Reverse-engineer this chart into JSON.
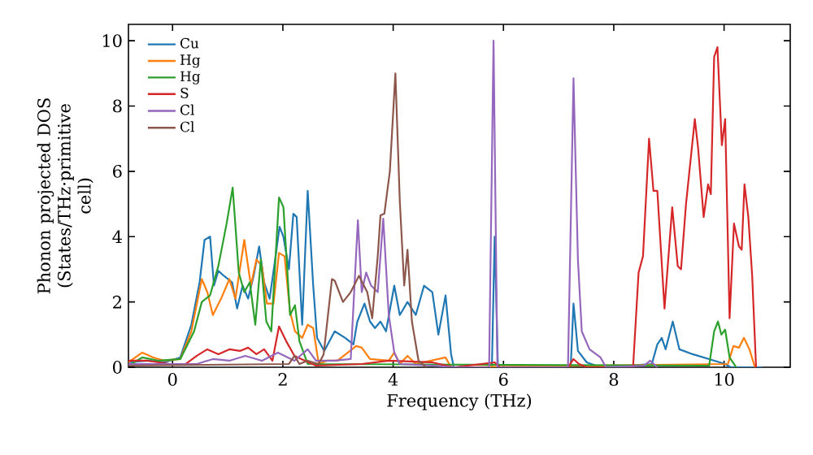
{
  "chart_data": {
    "type": "line",
    "xlabel": "Frequency (THz)",
    "ylabel": "Phonon projected DOS (States/THz·primitive cell)",
    "xlim": [
      -0.8,
      11.2
    ],
    "ylim": [
      0,
      10.5
    ],
    "xticks": [
      0,
      2,
      4,
      6,
      8,
      10
    ],
    "yticks": [
      0,
      2,
      4,
      6,
      8,
      10
    ],
    "legend": "top left",
    "grid": false,
    "marker": "none",
    "line_style": "solid",
    "series": [
      {
        "name": "Cu",
        "color": "#1f77b4",
        "x": [
          -0.8,
          -0.45,
          -0.15,
          0.14,
          0.34,
          0.49,
          0.58,
          0.68,
          0.75,
          0.83,
          0.93,
          1.08,
          1.17,
          1.27,
          1.37,
          1.47,
          1.57,
          1.66,
          1.76,
          1.86,
          1.94,
          2.01,
          2.11,
          2.19,
          2.25,
          2.35,
          2.45,
          2.55,
          2.62,
          2.75,
          2.94,
          3.13,
          3.28,
          3.35,
          3.48,
          3.58,
          3.67,
          3.77,
          3.87,
          4.02,
          4.12,
          4.26,
          4.41,
          4.56,
          4.71,
          4.82,
          4.95,
          5.05,
          5.1,
          5.79,
          5.84,
          5.9,
          7.22,
          7.27,
          7.35,
          7.51,
          7.76,
          8.69,
          8.79,
          8.87,
          8.94,
          9.07,
          9.19,
          9.43,
          9.73,
          10.02,
          10.12,
          10.7
        ],
        "values": [
          0.15,
          0.2,
          0.15,
          0.3,
          1.3,
          2.6,
          3.9,
          4.0,
          2.5,
          2.95,
          2.8,
          2.6,
          1.8,
          2.5,
          2.1,
          2.8,
          3.7,
          2.6,
          2.1,
          3.3,
          4.3,
          4.0,
          3.0,
          4.7,
          4.6,
          1.3,
          5.4,
          2.5,
          0.9,
          0.5,
          1.1,
          0.9,
          0.7,
          1.4,
          1.95,
          1.4,
          1.2,
          1.4,
          1.1,
          2.5,
          1.6,
          2.0,
          1.6,
          2.5,
          2.3,
          1.0,
          2.2,
          0.4,
          0,
          0,
          4.0,
          0,
          0.05,
          1.95,
          0.5,
          0.15,
          0,
          0.1,
          0.7,
          0.9,
          0.55,
          1.4,
          0.55,
          0.4,
          0.25,
          0.1,
          0,
          0
        ]
      },
      {
        "name": "Hg",
        "color": "#ff7f0e",
        "x": [
          -0.8,
          -0.55,
          -0.35,
          -0.15,
          0.14,
          0.34,
          0.53,
          0.63,
          0.73,
          0.88,
          1.03,
          1.14,
          1.3,
          1.42,
          1.52,
          1.62,
          1.71,
          1.83,
          1.93,
          2.03,
          2.13,
          2.22,
          2.35,
          2.45,
          2.55,
          2.65,
          2.8,
          2.99,
          3.33,
          3.43,
          3.58,
          3.92,
          4.02,
          4.12,
          4.26,
          4.41,
          4.95,
          5.05,
          10.07,
          10.17,
          10.27,
          10.36,
          10.46,
          10.56
        ],
        "values": [
          0.15,
          0.45,
          0.3,
          0.2,
          0.25,
          1.1,
          2.7,
          2.3,
          1.6,
          2.1,
          2.7,
          2.1,
          3.9,
          2.5,
          3.3,
          3.1,
          1.95,
          1.95,
          3.5,
          3.4,
          1.7,
          1.1,
          0.9,
          1.3,
          1.2,
          0.1,
          0.2,
          0.2,
          0.65,
          0.6,
          0.25,
          0.2,
          0.45,
          0.1,
          0.35,
          0.1,
          0.3,
          0,
          0.1,
          0.65,
          0.6,
          0.9,
          0.55,
          0
        ]
      },
      {
        "name": "Hg",
        "color": "#2ca02c",
        "x": [
          -0.8,
          -0.55,
          -0.25,
          0.14,
          0.39,
          0.53,
          0.68,
          0.83,
          0.98,
          1.09,
          1.2,
          1.3,
          1.4,
          1.5,
          1.6,
          1.7,
          1.79,
          1.93,
          2.01,
          2.13,
          2.22,
          2.3,
          2.45,
          9.73,
          9.82,
          9.89,
          9.95,
          10.02,
          10.1,
          10.22
        ],
        "values": [
          0.05,
          0.3,
          0.2,
          0.25,
          1.1,
          2.0,
          2.2,
          3.1,
          4.4,
          5.5,
          2.9,
          2.3,
          2.6,
          1.3,
          3.3,
          1.4,
          1.1,
          5.2,
          4.9,
          1.6,
          1.9,
          0.8,
          0.1,
          0.05,
          1.1,
          1.4,
          1.0,
          1.15,
          0.3,
          0
        ]
      },
      {
        "name": "S",
        "color": "#d62728",
        "x": [
          -0.8,
          -0.45,
          -0.05,
          0.24,
          0.44,
          0.63,
          0.83,
          1.03,
          1.22,
          1.37,
          1.52,
          1.66,
          1.81,
          1.93,
          2.06,
          2.21,
          2.4,
          2.6,
          3.43,
          3.92,
          4.71,
          5.1,
          5.84,
          5.94,
          7.17,
          7.27,
          7.37,
          7.51,
          8.35,
          8.45,
          8.53,
          8.64,
          8.72,
          8.79,
          8.92,
          9.06,
          9.16,
          9.22,
          9.31,
          9.47,
          9.53,
          9.63,
          9.71,
          9.76,
          9.82,
          9.88,
          9.96,
          10.02,
          10.1,
          10.18,
          10.27,
          10.32,
          10.37,
          10.44,
          10.51,
          10.58
        ],
        "values": [
          0.2,
          0.2,
          0.1,
          0.1,
          0.35,
          0.55,
          0.4,
          0.55,
          0.5,
          0.6,
          0.4,
          0.55,
          0.2,
          1.25,
          0.8,
          0.35,
          0.2,
          0.05,
          0.1,
          0.2,
          0.15,
          0,
          0.15,
          0,
          0,
          0.25,
          0.1,
          0,
          0,
          2.9,
          3.4,
          7.0,
          5.4,
          5.4,
          1.8,
          4.9,
          3.1,
          3.0,
          5.0,
          7.6,
          6.7,
          4.6,
          5.6,
          5.3,
          9.5,
          9.8,
          6.8,
          7.6,
          1.5,
          4.4,
          3.7,
          3.6,
          5.6,
          4.6,
          2.8,
          0
        ]
      },
      {
        "name": "Cl",
        "color": "#9467bd",
        "x": [
          -0.8,
          0.44,
          0.73,
          1.03,
          1.32,
          1.62,
          1.91,
          2.21,
          2.45,
          2.6,
          2.94,
          3.23,
          3.36,
          3.43,
          3.51,
          3.6,
          3.72,
          3.82,
          3.92,
          4.02,
          4.12,
          4.71,
          5.1,
          5.74,
          5.82,
          5.89,
          7.17,
          7.27,
          7.35,
          7.42,
          7.56,
          7.76,
          7.86,
          8.55,
          8.66,
          8.79
        ],
        "values": [
          0.1,
          0.1,
          0.25,
          0.2,
          0.35,
          0.2,
          0.45,
          0.2,
          0.55,
          0.2,
          0.2,
          0.25,
          4.5,
          2.3,
          2.9,
          2.5,
          2.3,
          4.55,
          1.6,
          0.45,
          0.1,
          0.05,
          0,
          0,
          10.0,
          0,
          0,
          8.85,
          3.3,
          1.1,
          0.55,
          0.3,
          0,
          0.05,
          0.2,
          0
        ]
      },
      {
        "name": "Cl",
        "color": "#8c564b",
        "x": [
          -0.8,
          2.11,
          2.21,
          2.3,
          2.45,
          2.65,
          2.74,
          2.89,
          2.94,
          3.09,
          3.23,
          3.38,
          3.53,
          3.62,
          3.72,
          3.77,
          3.84,
          3.94,
          4.04,
          4.12,
          4.2,
          4.26,
          4.34,
          4.46,
          4.6
        ],
        "values": [
          0.05,
          0.1,
          0.35,
          0.1,
          0.2,
          0.1,
          0.4,
          2.7,
          2.65,
          2.0,
          2.3,
          2.8,
          2.3,
          1.5,
          3.4,
          4.65,
          4.7,
          6.0,
          9.0,
          5.1,
          2.5,
          3.6,
          1.4,
          0.2,
          0
        ]
      }
    ]
  }
}
